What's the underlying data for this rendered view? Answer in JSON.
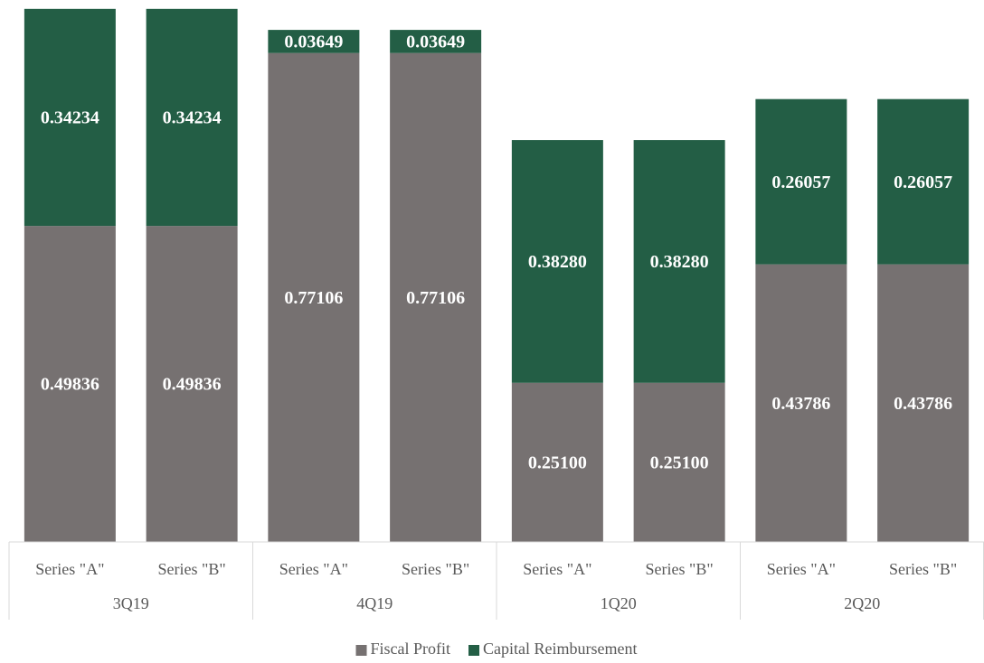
{
  "chart_data": {
    "type": "bar",
    "stacked": true,
    "categories": [
      "Series \"A\"",
      "Series \"B\"",
      "Series \"A\"",
      "Series \"B\"",
      "Series \"A\"",
      "Series \"B\"",
      "Series \"A\"",
      "Series \"B\""
    ],
    "groups": [
      "3Q19",
      "4Q19",
      "1Q20",
      "2Q20"
    ],
    "series": [
      {
        "name": "Fiscal Profit",
        "color": "#767171",
        "values": [
          0.49836,
          0.49836,
          0.77106,
          0.77106,
          0.251,
          0.251,
          0.43786,
          0.43786
        ],
        "value_labels": [
          "0.49836",
          "0.49836",
          "0.77106",
          "0.77106",
          "0.25100",
          "0.25100",
          "0.43786",
          "0.43786"
        ]
      },
      {
        "name": "Capital Reimbursement",
        "color": "#235e45",
        "values": [
          0.34234,
          0.34234,
          0.03649,
          0.03649,
          0.3828,
          0.3828,
          0.26057,
          0.26057
        ],
        "value_labels": [
          "0.34234",
          "0.34234",
          "0.03649",
          "0.03649",
          "0.38280",
          "0.38280",
          "0.26057",
          "0.26057"
        ]
      }
    ],
    "legend": "bottom"
  }
}
